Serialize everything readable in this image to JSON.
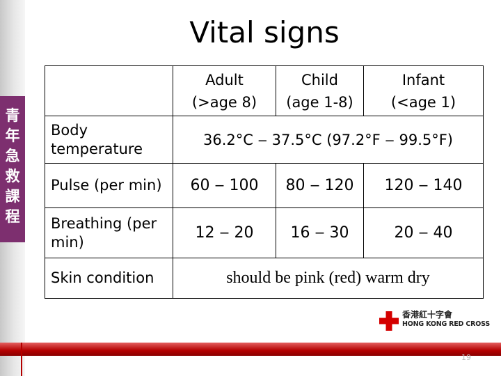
{
  "title": "Vital signs",
  "sidebar": {
    "chars": [
      "青",
      "年",
      "急",
      "救",
      "課",
      "程"
    ]
  },
  "table": {
    "headers": [
      {
        "line1": "Adult",
        "line2": "(>age 8)"
      },
      {
        "line1": "Child",
        "line2": "(age 1-8)"
      },
      {
        "line1": "Infant",
        "line2": "(<age 1)"
      }
    ],
    "rows": [
      {
        "label_line1": "Body",
        "label_line2": "temperature",
        "span_value": "36.2°C ‒ 37.5°C (97.2°F ‒ 99.5°F)"
      },
      {
        "label": "Pulse (per min)",
        "adult": "60 ‒ 100",
        "child": "80 ‒ 120",
        "infant": "120 ‒ 140"
      },
      {
        "label_line1": "Breathing (per",
        "label_line2": "min)",
        "adult": "12 ‒ 20",
        "child": "16 ‒ 30",
        "infant": "20 ‒ 40"
      },
      {
        "label": "Skin condition",
        "span_value": "should be pink (red) warm dry"
      }
    ]
  },
  "logo": {
    "name_cn": "香港紅十字會",
    "name_en": "HONG KONG RED CROSS"
  },
  "page_number": "19",
  "colors": {
    "sidebar_band": "#7d2f6f",
    "footer_bar": "#b40000",
    "logo_cross": "#d40000"
  }
}
